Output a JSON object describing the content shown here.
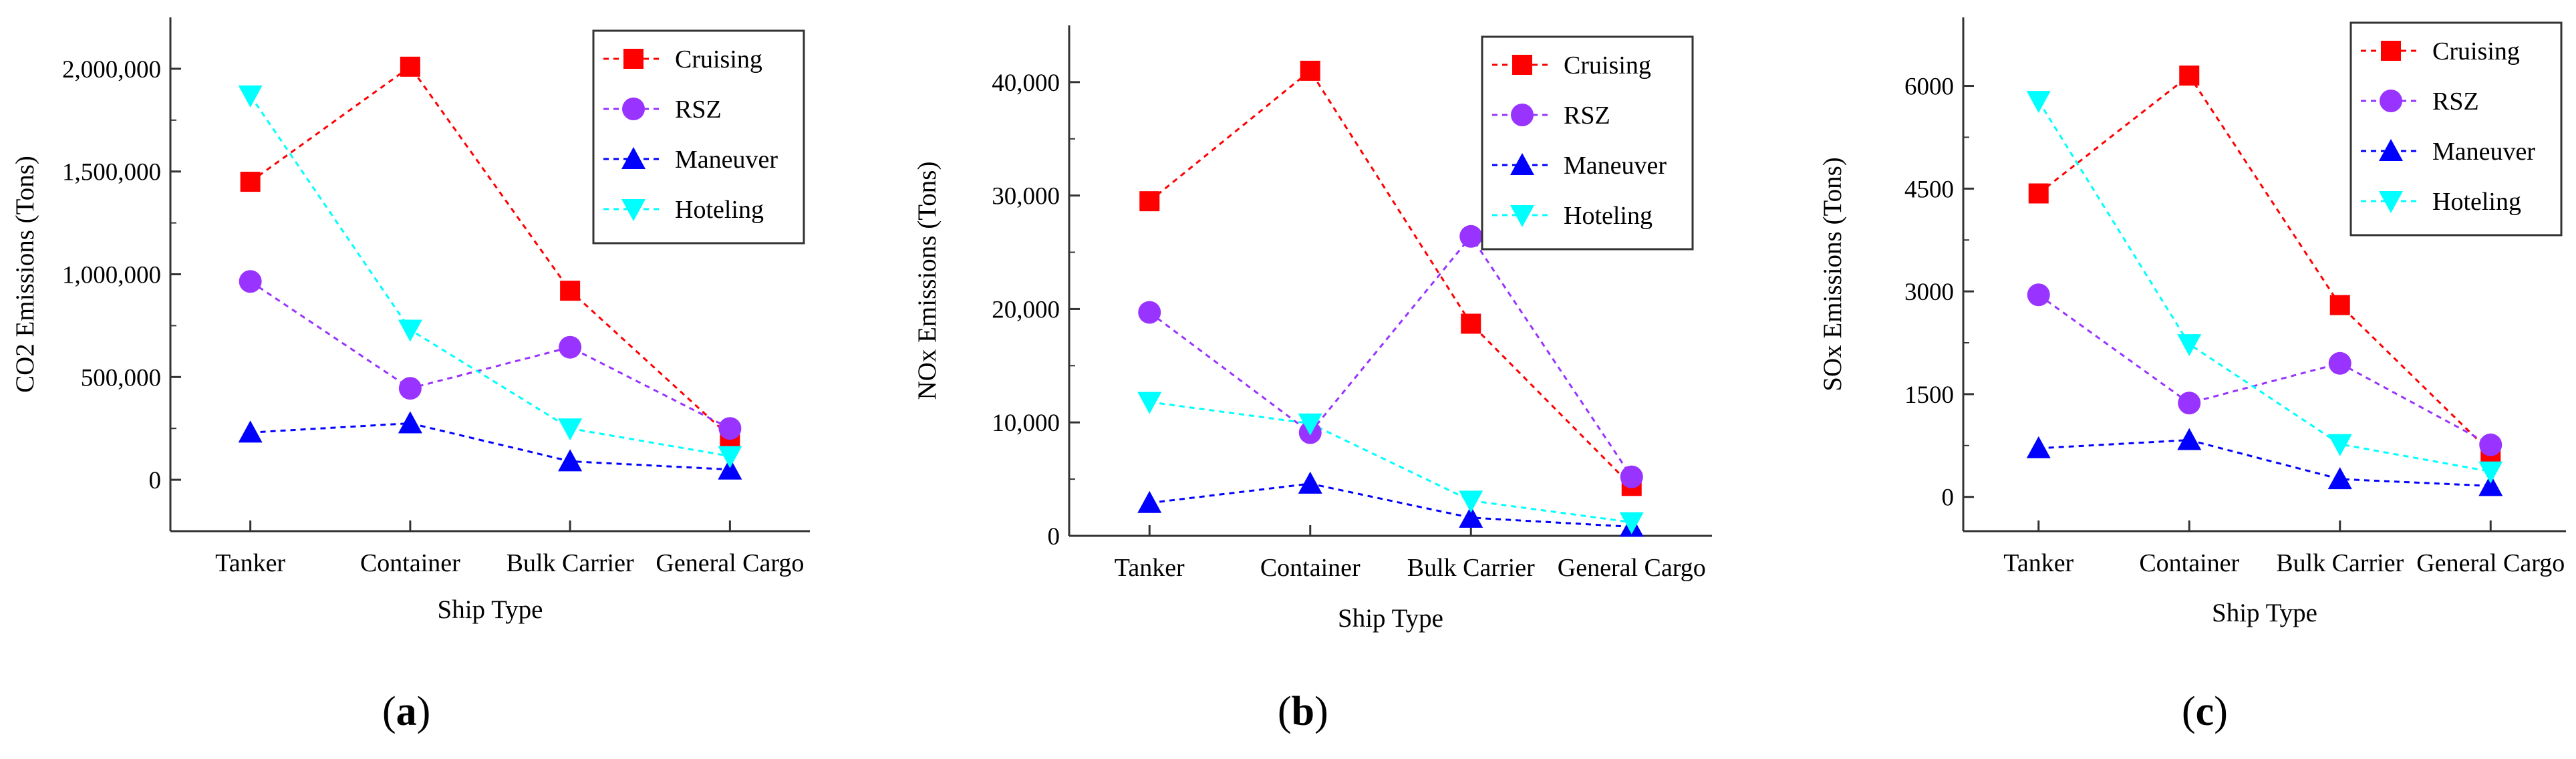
{
  "chart_data": [
    {
      "type": "line",
      "panel": "a",
      "categories": [
        "Tanker",
        "Container",
        "Bulk Carrier",
        "General Cargo"
      ],
      "ylabel": "CO2 Emissions (Tons)",
      "xlabel": "Ship Type",
      "ylim": [
        -250000,
        2250000
      ],
      "yticks": [
        0,
        500000,
        1000000,
        1500000,
        2000000
      ],
      "ytick_labels": [
        "0",
        "500,000",
        "1,000,000",
        "1,500,000",
        "2,000,000"
      ],
      "series": [
        {
          "name": "Cruising",
          "color": "#ff0000",
          "marker": "square",
          "values": [
            1450000,
            2010000,
            920000,
            210000
          ]
        },
        {
          "name": "RSZ",
          "color": "#9933ff",
          "marker": "circle",
          "values": [
            965000,
            445000,
            645000,
            250000
          ]
        },
        {
          "name": "Maneuver",
          "color": "#0000ff",
          "marker": "triangle-up",
          "values": [
            230000,
            275000,
            90000,
            50000
          ]
        },
        {
          "name": "Hoteling",
          "color": "#00ffff",
          "marker": "triangle-down",
          "values": [
            1870000,
            730000,
            250000,
            115000
          ]
        }
      ],
      "legend": "top-right"
    },
    {
      "type": "line",
      "panel": "b",
      "categories": [
        "Tanker",
        "Container",
        "Bulk Carrier",
        "General Cargo"
      ],
      "ylabel": "NOx Emissions (Tons)",
      "xlabel": "Ship Type",
      "ylim": [
        0,
        45000
      ],
      "yticks": [
        0,
        10000,
        20000,
        30000,
        40000
      ],
      "ytick_labels": [
        "0",
        "10,000",
        "20,000",
        "30,000",
        "40,000"
      ],
      "series": [
        {
          "name": "Cruising",
          "color": "#ff0000",
          "marker": "square",
          "values": [
            29500,
            41000,
            18700,
            4400
          ]
        },
        {
          "name": "RSZ",
          "color": "#9933ff",
          "marker": "circle",
          "values": [
            19700,
            9100,
            26400,
            5200
          ]
        },
        {
          "name": "Maneuver",
          "color": "#0000ff",
          "marker": "triangle-up",
          "values": [
            2900,
            4600,
            1600,
            800
          ]
        },
        {
          "name": "Hoteling",
          "color": "#00ffff",
          "marker": "triangle-down",
          "values": [
            11800,
            9900,
            3100,
            1200
          ]
        }
      ],
      "legend": "top-right"
    },
    {
      "type": "line",
      "panel": "c",
      "categories": [
        "Tanker",
        "Container",
        "Bulk Carrier",
        "General Cargo"
      ],
      "ylabel": "SOx Emissions (Tons)",
      "xlabel": "Ship Type",
      "ylim": [
        -500,
        7000
      ],
      "yticks": [
        0,
        1500,
        3000,
        4500,
        6000
      ],
      "ytick_labels": [
        "0",
        "1500",
        "3000",
        "4500",
        "6000"
      ],
      "series": [
        {
          "name": "Cruising",
          "color": "#ff0000",
          "marker": "square",
          "values": [
            4430,
            6150,
            2800,
            650
          ]
        },
        {
          "name": "RSZ",
          "color": "#9933ff",
          "marker": "circle",
          "values": [
            2950,
            1370,
            1950,
            760
          ]
        },
        {
          "name": "Maneuver",
          "color": "#0000ff",
          "marker": "triangle-up",
          "values": [
            710,
            830,
            260,
            160
          ]
        },
        {
          "name": "Hoteling",
          "color": "#00ffff",
          "marker": "triangle-down",
          "values": [
            5780,
            2230,
            770,
            370
          ]
        }
      ],
      "legend": "top-right"
    }
  ],
  "panel_labels": [
    "a",
    "b",
    "c"
  ]
}
